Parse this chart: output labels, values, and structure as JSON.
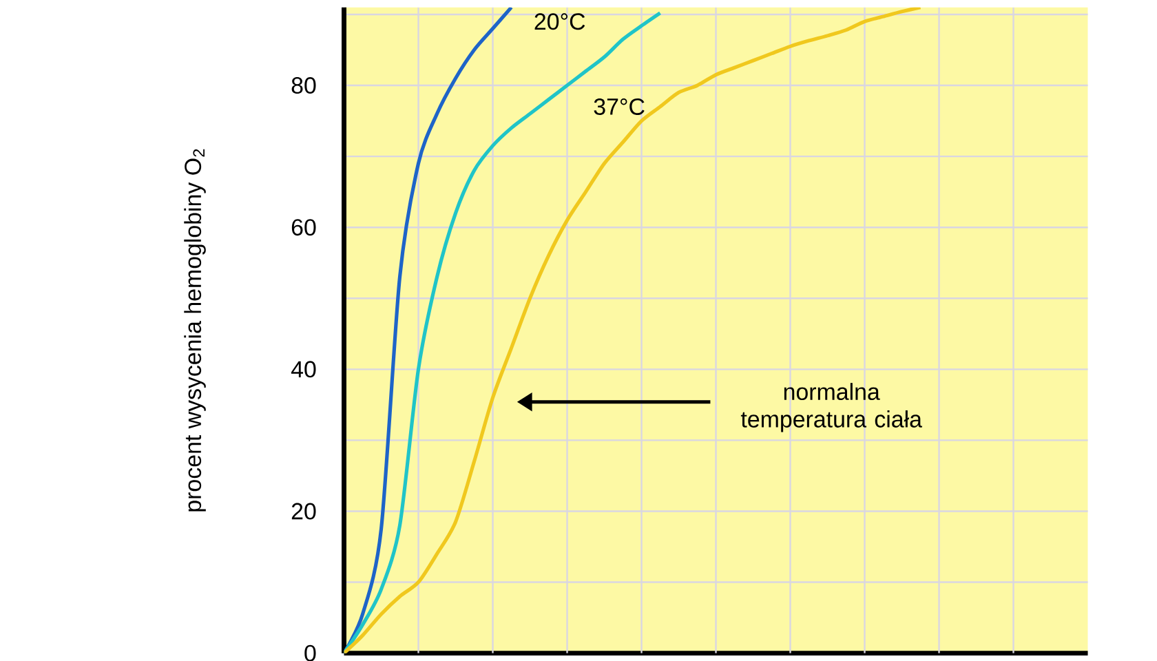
{
  "chart_data": {
    "type": "line",
    "ylabel": "procent wysycenia hemoglobiny O$_{2}$",
    "categories": [
      null,
      null,
      null,
      null,
      null,
      null,
      null,
      null,
      null,
      null,
      null,
      null,
      null,
      null,
      null,
      null,
      null,
      null,
      null,
      null,
      null,
      null,
      null,
      null,
      null,
      null,
      null,
      null,
      null,
      null,
      null,
      null,
      null,
      null,
      null,
      null,
      null,
      null,
      null,
      null,
      null
    ],
    "series": [
      {
        "color": "#1e64c8",
        "values": [
          0,
          5.5,
          17.5,
          53,
          69,
          76,
          81,
          85,
          88,
          91,
          null,
          null,
          null,
          null,
          null,
          null,
          null,
          null,
          null,
          null,
          null,
          null,
          null,
          null,
          null,
          null,
          null,
          null,
          null,
          null,
          null,
          null,
          null,
          null,
          null,
          null,
          null,
          null,
          null,
          null,
          null
        ]
      },
      {
        "name": "20°C",
        "color": "#20c4c8",
        "values": [
          0,
          4,
          9,
          18,
          40,
          53,
          62,
          68,
          71.5,
          74,
          76,
          78,
          80,
          82,
          84,
          86.5,
          88.4,
          90.2,
          null,
          null,
          null,
          null,
          null,
          null,
          null,
          null,
          null,
          null,
          null,
          null,
          null,
          null,
          null,
          null,
          null,
          null,
          null,
          null,
          null,
          null,
          null
        ]
      },
      {
        "name": "37°C",
        "color": "#f0c81e",
        "values": [
          0,
          2.5,
          5.5,
          8,
          10,
          14,
          18.5,
          27,
          36,
          43,
          50,
          56,
          61,
          65,
          69,
          72,
          75,
          77,
          79,
          80,
          81.5,
          82.5,
          83.5,
          84.5,
          85.5,
          86.3,
          87,
          87.8,
          89,
          89.7,
          90.4,
          91,
          null,
          null,
          null,
          null,
          null,
          null,
          null,
          null,
          null
        ]
      }
    ],
    "ylim": [
      0,
      91
    ],
    "yticks": [
      0,
      {
        "value": 10,
        "label": null
      },
      20,
      {
        "value": 30,
        "label": null
      },
      40,
      {
        "value": 50,
        "label": null
      },
      60,
      {
        "value": 70,
        "label": null
      },
      80,
      {
        "value": 90,
        "label": null
      }
    ],
    "grid": true,
    "annotations": [
      "normalna temperatura ciała"
    ]
  }
}
